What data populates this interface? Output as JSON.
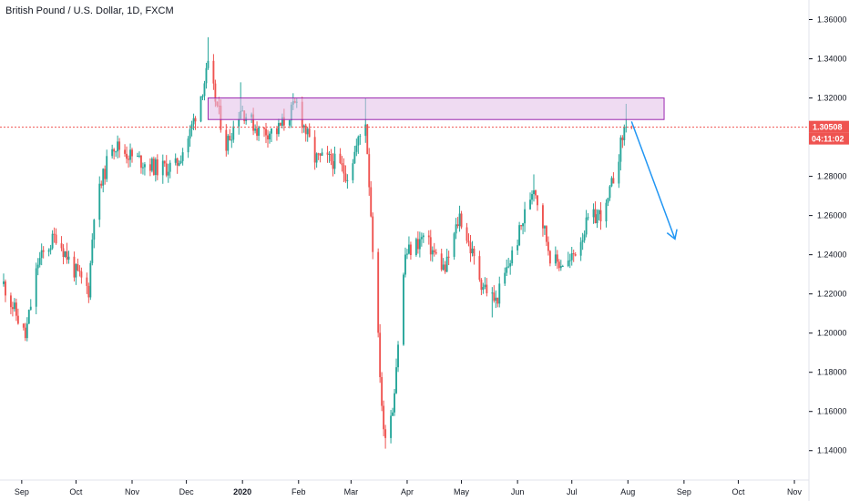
{
  "title": "British Pound / U.S. Dollar, 1D, FXCM",
  "colors": {
    "up": "#26a69a",
    "down": "#ef5350",
    "zone_fill": "#e1bee7",
    "zone_stroke": "#9c27b0",
    "arrow": "#2196f3",
    "price_line": "#ef5350"
  },
  "chart_data": {
    "type": "candlestick",
    "title": "British Pound / U.S. Dollar, 1D, FXCM",
    "ylim": [
      1.125,
      1.37
    ],
    "y_ticks": [
      "1.36000",
      "1.34000",
      "1.32000",
      "1.30000",
      "1.28000",
      "1.26000",
      "1.24000",
      "1.22000",
      "1.20000",
      "1.18000",
      "1.16000",
      "1.14000"
    ],
    "x_ticks": [
      "Sep",
      "Oct",
      "Nov",
      "Dec",
      "2020",
      "Feb",
      "Mar",
      "Apr",
      "May",
      "Jun",
      "Jul",
      "Aug",
      "Sep",
      "Oct",
      "Nov"
    ],
    "x_tick_dates": [
      "2019-09-01",
      "2019-10-01",
      "2019-11-01",
      "2019-12-01",
      "2020-01-01",
      "2020-02-01",
      "2020-03-01",
      "2020-04-01",
      "2020-05-01",
      "2020-06-01",
      "2020-07-01",
      "2020-08-01",
      "2020-09-01",
      "2020-10-01",
      "2020-11-01"
    ],
    "bold_ticks": [
      "2020"
    ],
    "anchors": [
      [
        "2019-08-22",
        1.225
      ],
      [
        "2019-09-03",
        1.198
      ],
      [
        "2019-09-10",
        1.236
      ],
      [
        "2019-09-20",
        1.25
      ],
      [
        "2019-09-30",
        1.232
      ],
      [
        "2019-10-08",
        1.222
      ],
      [
        "2019-10-11",
        1.262
      ],
      [
        "2019-10-21",
        1.297
      ],
      [
        "2019-11-01",
        1.29
      ],
      [
        "2019-11-15",
        1.284
      ],
      [
        "2019-11-25",
        1.285
      ],
      [
        "2019-12-03",
        1.302
      ],
      [
        "2019-12-13",
        1.335
      ],
      [
        "2019-12-23",
        1.296
      ],
      [
        "2019-12-31",
        1.315
      ],
      [
        "2020-01-10",
        1.303
      ],
      [
        "2020-01-20",
        1.303
      ],
      [
        "2020-01-31",
        1.317
      ],
      [
        "2020-02-10",
        1.289
      ],
      [
        "2020-02-20",
        1.288
      ],
      [
        "2020-02-28",
        1.281
      ],
      [
        "2020-03-09",
        1.309
      ],
      [
        "2020-03-13",
        1.245
      ],
      [
        "2020-03-19",
        1.148
      ],
      [
        "2020-03-24",
        1.162
      ],
      [
        "2020-03-31",
        1.24
      ],
      [
        "2020-04-10",
        1.249
      ],
      [
        "2020-04-22",
        1.232
      ],
      [
        "2020-04-30",
        1.26
      ],
      [
        "2020-05-12",
        1.226
      ],
      [
        "2020-05-20",
        1.216
      ],
      [
        "2020-06-01",
        1.248
      ],
      [
        "2020-06-10",
        1.276
      ],
      [
        "2020-06-20",
        1.236
      ],
      [
        "2020-06-30",
        1.236
      ],
      [
        "2020-07-10",
        1.257
      ],
      [
        "2020-07-20",
        1.263
      ],
      [
        "2020-07-31",
        1.308
      ],
      [
        "2020-08-03",
        1.305
      ]
    ],
    "extremes": [
      [
        "2019-09-03",
        1.196,
        "low"
      ],
      [
        "2019-12-13",
        1.351,
        "high"
      ],
      [
        "2019-12-31",
        1.328,
        "high"
      ],
      [
        "2020-01-31",
        1.32,
        "high"
      ],
      [
        "2020-03-09",
        1.32,
        "high"
      ],
      [
        "2020-03-20",
        1.141,
        "low"
      ],
      [
        "2020-05-18",
        1.208,
        "low"
      ],
      [
        "2020-06-10",
        1.281,
        "high"
      ],
      [
        "2020-07-31",
        1.317,
        "high"
      ]
    ],
    "resistance_zone": {
      "y_low": 1.309,
      "y_high": 1.32,
      "x_start": "2019-12-13",
      "x_end": "2020-08-21"
    },
    "projection_arrow": {
      "from": [
        "2020-08-03",
        1.308
      ],
      "to": [
        "2020-08-27",
        1.248
      ]
    },
    "current_price": "1.30508",
    "countdown": "04:11:02"
  }
}
